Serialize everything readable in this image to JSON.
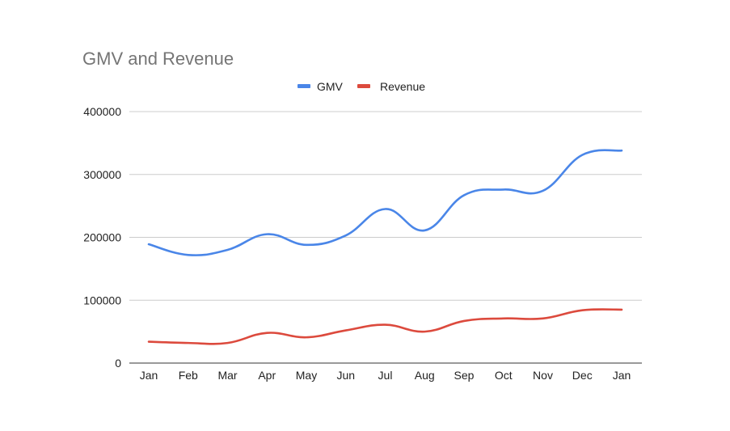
{
  "chart_data": {
    "type": "line",
    "title": "GMV and Revenue",
    "xlabel": "",
    "ylabel": "",
    "categories": [
      "Jan",
      "Feb",
      "Mar",
      "Apr",
      "May",
      "Jun",
      "Jul",
      "Aug",
      "Sep",
      "Oct",
      "Nov",
      "Dec",
      "Jan"
    ],
    "y_ticks": [
      "0",
      "100000",
      "200000",
      "300000",
      "400000"
    ],
    "ylim": [
      0,
      400000
    ],
    "grid": true,
    "legend_position": "top-center",
    "series": [
      {
        "name": "GMV",
        "color": "#4a86e8",
        "values": [
          189000,
          172000,
          180000,
          205000,
          188000,
          203000,
          245000,
          211000,
          267000,
          276000,
          274000,
          331000,
          338000
        ]
      },
      {
        "name": "Revenue",
        "color": "#dc4a3d",
        "values": [
          34000,
          32000,
          32000,
          48000,
          41000,
          52000,
          61000,
          50000,
          67000,
          71000,
          71000,
          84000,
          85000
        ]
      }
    ]
  }
}
